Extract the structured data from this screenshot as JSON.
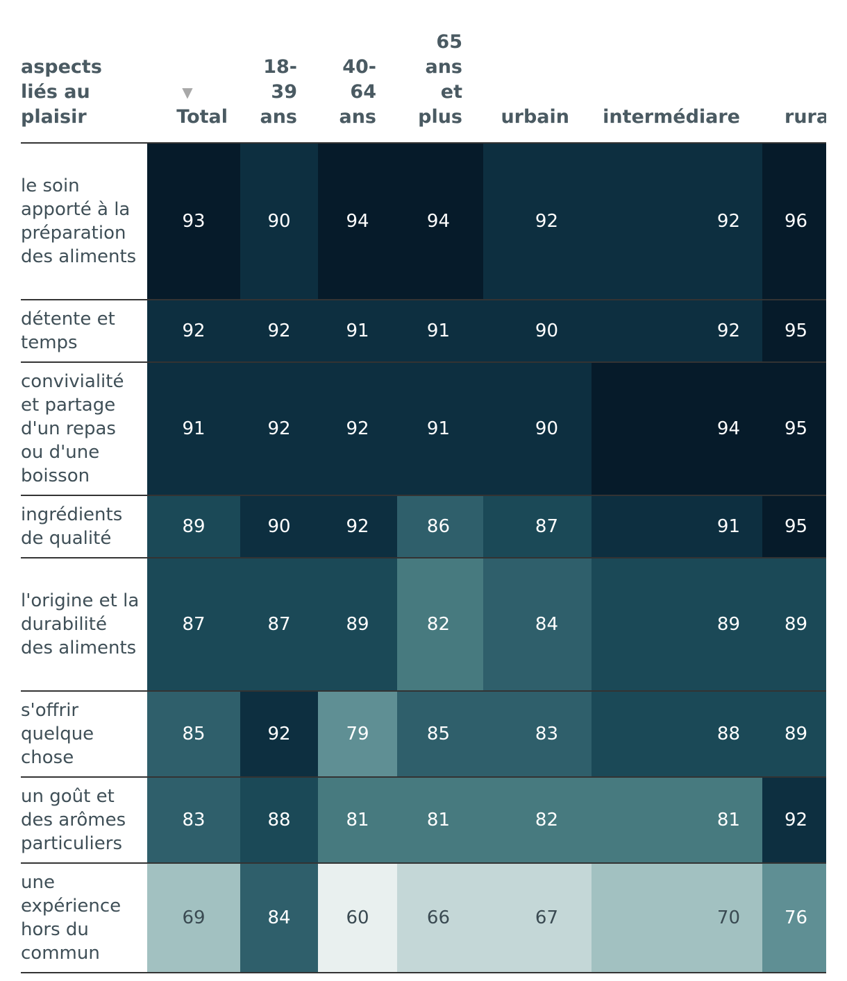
{
  "chart_data": {
    "type": "table",
    "header": {
      "row_label": "aspects liés au plaisir",
      "columns": [
        "Total",
        "18-39 ans",
        "40-64 ans",
        "65 ans et plus",
        "urbain",
        "intermédiare",
        "rural"
      ],
      "sort_indicator": "▼"
    },
    "rows": [
      {
        "label": "le soin apporté à la préparation des aliments",
        "values": [
          93,
          90,
          94,
          94,
          92,
          92,
          96
        ]
      },
      {
        "label": "détente et temps",
        "values": [
          92,
          92,
          91,
          91,
          90,
          92,
          95
        ]
      },
      {
        "label": "convivialité et partage d'un repas ou d'une boisson",
        "values": [
          91,
          92,
          92,
          91,
          90,
          94,
          95
        ]
      },
      {
        "label": "ingrédients de qualité",
        "values": [
          89,
          90,
          92,
          86,
          87,
          91,
          95
        ]
      },
      {
        "label": "l'origine et la durabilité des aliments",
        "values": [
          87,
          87,
          89,
          82,
          84,
          89,
          89
        ]
      },
      {
        "label": "s'offrir quelque chose",
        "values": [
          85,
          92,
          79,
          85,
          83,
          88,
          89
        ]
      },
      {
        "label": "un goût et des arômes particuliers",
        "values": [
          83,
          88,
          81,
          81,
          82,
          81,
          92
        ]
      },
      {
        "label": "une expérience hors du commun",
        "values": [
          69,
          84,
          60,
          66,
          67,
          70,
          76
        ]
      }
    ],
    "color_scale": {
      "stops": [
        {
          "value": 60,
          "color": "#e9f0ef"
        },
        {
          "value": 66,
          "color": "#c4d7d7"
        },
        {
          "value": 69,
          "color": "#a2c1c1"
        },
        {
          "value": 76,
          "color": "#5f8f94"
        },
        {
          "value": 80,
          "color": "#477a7f"
        },
        {
          "value": 83,
          "color": "#2f5f6b"
        },
        {
          "value": 87,
          "color": "#1b4957"
        },
        {
          "value": 90,
          "color": "#0d2f40"
        },
        {
          "value": 93,
          "color": "#061b2a"
        }
      ],
      "light_text": "#ffffff",
      "dark_text": "#3a4a52"
    }
  }
}
